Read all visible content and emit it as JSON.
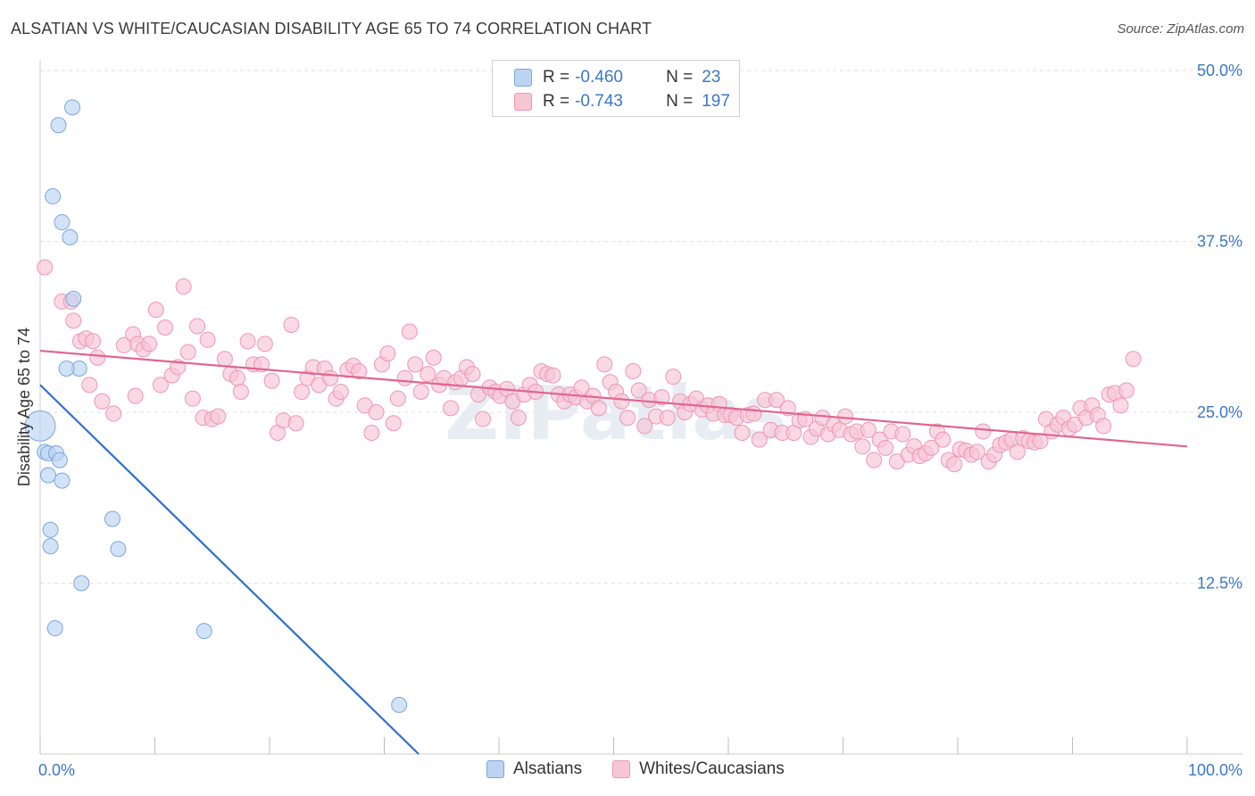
{
  "title": "ALSATIAN VS WHITE/CAUCASIAN DISABILITY AGE 65 TO 74 CORRELATION CHART",
  "source": "Source: ZipAtlas.com",
  "legend": {
    "rows": [
      {
        "r_label": "R =",
        "r_value": "-0.460",
        "n_label": "N =",
        "n_value": "23"
      },
      {
        "r_label": "R =",
        "r_value": "-0.743",
        "n_label": "N =",
        "n_value": "197"
      }
    ]
  },
  "bottom_legend": [
    "Alsatians",
    "Whites/Caucasians"
  ],
  "colors": {
    "blue_fill": "#bcd4f2",
    "blue_stroke": "#7aa6dd",
    "blue_line": "#2f6fd0",
    "pink_fill": "#f8c5d5",
    "pink_stroke": "#ee96b3",
    "pink_line": "#e0668f",
    "tick_label": "#3a78c8",
    "grid": "#e2e2e2"
  },
  "chart_data": {
    "type": "scatter",
    "title": "ALSATIAN VS WHITE/CAUCASIAN DISABILITY AGE 65 TO 74 CORRELATION CHART",
    "xlabel": "",
    "ylabel": "Disability Age 65 to 74",
    "xlim": [
      0,
      100
    ],
    "ylim": [
      0,
      50
    ],
    "x_tick_labels": [
      "0.0%",
      "100.0%"
    ],
    "y_ticks": [
      12.5,
      25.0,
      37.5,
      50.0
    ],
    "y_tick_labels": [
      "12.5%",
      "25.0%",
      "37.5%",
      "50.0%"
    ],
    "grid": true,
    "watermark": "ZIPatlas",
    "series": [
      {
        "name": "Alsatians",
        "points": [
          [
            0.0,
            24.0
          ],
          [
            0.4,
            22.1
          ],
          [
            0.7,
            22.0
          ],
          [
            1.4,
            22.0
          ],
          [
            1.7,
            21.5
          ],
          [
            0.7,
            20.4
          ],
          [
            1.9,
            20.0
          ],
          [
            3.4,
            28.2
          ],
          [
            2.3,
            28.2
          ],
          [
            2.9,
            33.3
          ],
          [
            2.6,
            37.8
          ],
          [
            1.9,
            38.9
          ],
          [
            1.1,
            40.8
          ],
          [
            1.6,
            46.0
          ],
          [
            2.8,
            47.3
          ],
          [
            0.9,
            16.4
          ],
          [
            0.9,
            15.2
          ],
          [
            6.3,
            17.2
          ],
          [
            6.8,
            15.0
          ],
          [
            3.6,
            12.5
          ],
          [
            1.3,
            9.2
          ],
          [
            14.3,
            9.0
          ],
          [
            31.3,
            3.6
          ]
        ],
        "trend": {
          "x": [
            0.0,
            33.0
          ],
          "y": [
            27.0,
            0.0
          ]
        }
      },
      {
        "name": "Whites/Caucasians",
        "points": [
          [
            0.4,
            35.6
          ],
          [
            1.9,
            33.1
          ],
          [
            2.7,
            33.1
          ],
          [
            2.9,
            31.7
          ],
          [
            3.5,
            30.2
          ],
          [
            4.0,
            30.4
          ],
          [
            4.6,
            30.2
          ],
          [
            5.0,
            29.0
          ],
          [
            4.3,
            27.0
          ],
          [
            5.4,
            25.8
          ],
          [
            6.4,
            24.9
          ],
          [
            7.3,
            29.9
          ],
          [
            8.1,
            30.7
          ],
          [
            8.5,
            30.0
          ],
          [
            8.3,
            26.2
          ],
          [
            9.0,
            29.6
          ],
          [
            9.5,
            30.0
          ],
          [
            10.1,
            32.5
          ],
          [
            10.5,
            27.0
          ],
          [
            10.9,
            31.2
          ],
          [
            11.5,
            27.7
          ],
          [
            12.0,
            28.3
          ],
          [
            12.5,
            34.2
          ],
          [
            12.9,
            29.4
          ],
          [
            13.3,
            26.0
          ],
          [
            13.7,
            31.3
          ],
          [
            14.2,
            24.6
          ],
          [
            14.6,
            30.3
          ],
          [
            15.0,
            24.5
          ],
          [
            15.5,
            24.7
          ],
          [
            16.1,
            28.9
          ],
          [
            16.6,
            27.8
          ],
          [
            17.2,
            27.5
          ],
          [
            17.5,
            26.5
          ],
          [
            18.1,
            30.2
          ],
          [
            18.6,
            28.5
          ],
          [
            19.3,
            28.5
          ],
          [
            19.6,
            30.0
          ],
          [
            20.2,
            27.3
          ],
          [
            20.7,
            23.5
          ],
          [
            21.2,
            24.4
          ],
          [
            21.9,
            31.4
          ],
          [
            22.3,
            24.2
          ],
          [
            22.8,
            26.5
          ],
          [
            23.3,
            27.5
          ],
          [
            23.8,
            28.3
          ],
          [
            24.3,
            27.0
          ],
          [
            24.8,
            28.2
          ],
          [
            25.3,
            27.5
          ],
          [
            25.8,
            26.0
          ],
          [
            26.2,
            26.5
          ],
          [
            26.8,
            28.1
          ],
          [
            27.3,
            28.4
          ],
          [
            27.8,
            28.0
          ],
          [
            28.3,
            25.5
          ],
          [
            28.9,
            23.5
          ],
          [
            29.3,
            25.0
          ],
          [
            29.8,
            28.5
          ],
          [
            30.3,
            29.3
          ],
          [
            30.8,
            24.2
          ],
          [
            31.2,
            26.0
          ],
          [
            31.8,
            27.5
          ],
          [
            32.2,
            30.9
          ],
          [
            32.7,
            28.5
          ],
          [
            33.2,
            26.5
          ],
          [
            33.8,
            27.8
          ],
          [
            34.3,
            29.0
          ],
          [
            34.8,
            27.0
          ],
          [
            35.2,
            27.5
          ],
          [
            35.8,
            25.3
          ],
          [
            36.2,
            27.2
          ],
          [
            36.7,
            27.5
          ],
          [
            37.2,
            28.3
          ],
          [
            37.7,
            27.8
          ],
          [
            38.2,
            26.3
          ],
          [
            38.6,
            24.5
          ],
          [
            39.2,
            26.8
          ],
          [
            39.7,
            26.5
          ],
          [
            40.1,
            26.2
          ],
          [
            40.7,
            26.7
          ],
          [
            41.2,
            25.8
          ],
          [
            41.7,
            24.6
          ],
          [
            42.2,
            26.3
          ],
          [
            42.7,
            27.0
          ],
          [
            43.2,
            26.5
          ],
          [
            43.7,
            28.0
          ],
          [
            44.2,
            27.8
          ],
          [
            44.7,
            27.7
          ],
          [
            45.2,
            26.3
          ],
          [
            45.7,
            25.8
          ],
          [
            46.2,
            26.3
          ],
          [
            46.7,
            26.1
          ],
          [
            47.2,
            26.8
          ],
          [
            47.7,
            25.8
          ],
          [
            48.2,
            26.2
          ],
          [
            48.7,
            25.3
          ],
          [
            49.2,
            28.5
          ],
          [
            49.7,
            27.2
          ],
          [
            50.2,
            26.5
          ],
          [
            50.7,
            25.8
          ],
          [
            51.2,
            24.6
          ],
          [
            51.7,
            28.0
          ],
          [
            52.2,
            26.6
          ],
          [
            52.7,
            24.0
          ],
          [
            53.1,
            25.9
          ],
          [
            53.7,
            24.7
          ],
          [
            54.2,
            26.1
          ],
          [
            54.7,
            24.6
          ],
          [
            55.2,
            27.6
          ],
          [
            55.8,
            25.8
          ],
          [
            56.2,
            25.0
          ],
          [
            56.7,
            25.6
          ],
          [
            57.2,
            26.0
          ],
          [
            57.7,
            25.2
          ],
          [
            58.2,
            25.5
          ],
          [
            58.7,
            24.9
          ],
          [
            59.2,
            25.6
          ],
          [
            59.7,
            24.8
          ],
          [
            60.2,
            24.8
          ],
          [
            60.7,
            24.6
          ],
          [
            61.2,
            23.5
          ],
          [
            61.7,
            24.8
          ],
          [
            62.2,
            24.9
          ],
          [
            62.7,
            23.0
          ],
          [
            63.2,
            25.9
          ],
          [
            63.7,
            23.7
          ],
          [
            64.2,
            25.9
          ],
          [
            64.7,
            23.5
          ],
          [
            65.2,
            25.3
          ],
          [
            65.7,
            23.5
          ],
          [
            66.2,
            24.4
          ],
          [
            66.7,
            24.5
          ],
          [
            67.2,
            23.2
          ],
          [
            67.7,
            23.8
          ],
          [
            68.2,
            24.6
          ],
          [
            68.7,
            23.4
          ],
          [
            69.2,
            24.1
          ],
          [
            69.7,
            23.7
          ],
          [
            70.2,
            24.7
          ],
          [
            70.7,
            23.4
          ],
          [
            71.2,
            23.6
          ],
          [
            71.7,
            22.5
          ],
          [
            72.2,
            23.7
          ],
          [
            72.7,
            21.5
          ],
          [
            73.2,
            23.0
          ],
          [
            73.7,
            22.4
          ],
          [
            74.2,
            23.6
          ],
          [
            74.7,
            21.4
          ],
          [
            75.2,
            23.4
          ],
          [
            75.7,
            21.9
          ],
          [
            76.2,
            22.5
          ],
          [
            76.7,
            21.8
          ],
          [
            77.2,
            22.0
          ],
          [
            77.7,
            22.4
          ],
          [
            78.2,
            23.6
          ],
          [
            78.7,
            23.0
          ],
          [
            79.2,
            21.5
          ],
          [
            79.7,
            21.2
          ],
          [
            80.2,
            22.3
          ],
          [
            80.7,
            22.2
          ],
          [
            81.2,
            21.9
          ],
          [
            81.7,
            22.1
          ],
          [
            82.2,
            23.6
          ],
          [
            82.7,
            21.4
          ],
          [
            83.2,
            21.9
          ],
          [
            83.7,
            22.6
          ],
          [
            84.2,
            22.8
          ],
          [
            84.7,
            23.0
          ],
          [
            85.2,
            22.1
          ],
          [
            85.7,
            23.1
          ],
          [
            86.2,
            22.9
          ],
          [
            86.7,
            22.8
          ],
          [
            87.2,
            22.9
          ],
          [
            87.7,
            24.5
          ],
          [
            88.2,
            23.6
          ],
          [
            88.7,
            24.1
          ],
          [
            89.2,
            24.6
          ],
          [
            89.7,
            23.8
          ],
          [
            90.2,
            24.1
          ],
          [
            90.7,
            25.3
          ],
          [
            91.2,
            24.6
          ],
          [
            91.7,
            25.5
          ],
          [
            92.2,
            24.8
          ],
          [
            92.7,
            24.0
          ],
          [
            93.2,
            26.3
          ],
          [
            93.7,
            26.4
          ],
          [
            94.2,
            25.5
          ],
          [
            94.7,
            26.6
          ],
          [
            95.3,
            28.9
          ]
        ],
        "trend": {
          "x": [
            0.0,
            100.0
          ],
          "y": [
            29.5,
            22.5
          ]
        }
      }
    ]
  }
}
